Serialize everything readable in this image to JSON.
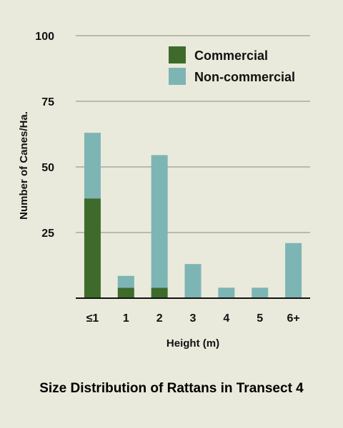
{
  "chart_data": {
    "type": "bar",
    "stacked": true,
    "title": "Size Distribution of Rattans in Transect 4",
    "xlabel": "Height (m)",
    "ylabel": "Number of Canes/Ha.",
    "categories": [
      "≤1",
      "1",
      "2",
      "3",
      "4",
      "5",
      "6+"
    ],
    "series": [
      {
        "name": "Commercial",
        "color": "#3e6b2c",
        "values": [
          38,
          4,
          4,
          0,
          0,
          0,
          0
        ]
      },
      {
        "name": "Non-commercial",
        "color": "#7db5b5",
        "values": [
          25,
          4.5,
          50.5,
          13,
          4,
          4,
          21
        ]
      }
    ],
    "ylim": [
      0,
      100
    ],
    "yticks": [
      "100",
      "75",
      "50",
      "25"
    ],
    "grid": true,
    "legend": "top-right",
    "background": "#e9eadb"
  }
}
